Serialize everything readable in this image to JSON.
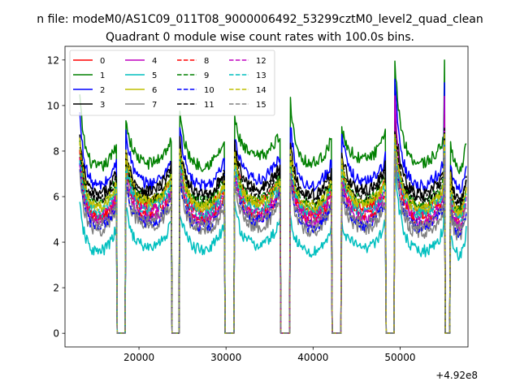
{
  "figure": {
    "suptitle": "n file: modeM0/AS1C09_011T08_9000006492_53299cztM0_level2_quad_clean",
    "offset_label": "+4.92e8"
  },
  "chart_data": {
    "type": "line",
    "title": "Quadrant 0 module wise count rates with 100.0s bins.",
    "xlabel": "",
    "ylabel": "",
    "x_offset": 492000000,
    "xlim": [
      11500,
      57800
    ],
    "ylim": [
      -0.6,
      12.6
    ],
    "xticks": [
      20000,
      30000,
      40000,
      50000
    ],
    "xtick_labels": [
      "20000",
      "30000",
      "40000",
      "50000"
    ],
    "yticks": [
      0,
      2,
      4,
      6,
      8,
      10,
      12
    ],
    "ytick_labels": [
      "0",
      "2",
      "4",
      "6",
      "8",
      "10",
      "12"
    ],
    "grid": false,
    "legend": {
      "position": "top-left",
      "columns": 4
    },
    "x_start": 13200,
    "x_end": 57600,
    "bin": 100,
    "active_segments": [
      [
        13200,
        17400
      ],
      [
        18500,
        23700
      ],
      [
        24700,
        29800
      ],
      [
        31000,
        36200
      ],
      [
        37400,
        42100
      ],
      [
        43300,
        48300
      ],
      [
        49400,
        55100
      ],
      [
        55800,
        57600
      ]
    ],
    "series": [
      {
        "name": "0",
        "color": "#ff0000",
        "dash": "solid",
        "levels": [
          5.6,
          6.2,
          6.0,
          6.3,
          5.8,
          6.1,
          5.9,
          5.8
        ],
        "spikes": [
          8.0,
          7.5,
          7.7,
          7.8,
          7.0,
          6.8,
          7.6,
          6.0
        ]
      },
      {
        "name": "1",
        "color": "#008000",
        "dash": "solid",
        "levels": [
          7.8,
          8.0,
          7.9,
          8.3,
          8.0,
          8.2,
          8.0,
          7.8
        ],
        "spikes": [
          10.4,
          9.4,
          9.6,
          9.4,
          10.1,
          8.9,
          12.0,
          8.5
        ]
      },
      {
        "name": "2",
        "color": "#0000ff",
        "dash": "solid",
        "levels": [
          7.0,
          7.1,
          7.0,
          7.3,
          7.0,
          7.2,
          7.0,
          6.9
        ],
        "spikes": [
          9.6,
          9.0,
          9.1,
          8.6,
          9.2,
          8.7,
          11.0,
          7.6
        ]
      },
      {
        "name": "3",
        "color": "#000000",
        "dash": "solid",
        "levels": [
          6.6,
          6.8,
          6.6,
          6.9,
          6.6,
          6.8,
          6.6,
          6.4
        ],
        "spikes": [
          8.6,
          8.0,
          8.4,
          8.3,
          8.4,
          8.0,
          9.6,
          7.0
        ]
      },
      {
        "name": "4",
        "color": "#bf00bf",
        "dash": "solid",
        "levels": [
          5.4,
          5.6,
          5.4,
          5.6,
          5.4,
          5.5,
          5.3,
          5.2
        ],
        "spikes": [
          7.6,
          7.0,
          7.1,
          7.0,
          7.3,
          6.7,
          10.4,
          6.0
        ]
      },
      {
        "name": "5",
        "color": "#00bfbf",
        "dash": "solid",
        "levels": [
          4.1,
          4.3,
          4.2,
          4.4,
          4.1,
          4.3,
          4.1,
          4.0
        ],
        "spikes": [
          5.6,
          5.5,
          5.4,
          5.6,
          5.0,
          4.8,
          7.4,
          4.4
        ]
      },
      {
        "name": "6",
        "color": "#bfbf00",
        "dash": "solid",
        "levels": [
          6.0,
          6.3,
          6.1,
          6.2,
          6.0,
          6.2,
          6.0,
          5.8
        ],
        "spikes": [
          8.4,
          7.8,
          8.0,
          7.8,
          7.8,
          7.4,
          8.6,
          6.8
        ]
      },
      {
        "name": "7",
        "color": "#808080",
        "dash": "solid",
        "levels": [
          5.0,
          5.2,
          5.0,
          5.2,
          5.0,
          5.1,
          4.9,
          4.8
        ],
        "spikes": [
          7.0,
          6.6,
          6.8,
          6.6,
          6.6,
          6.2,
          7.8,
          5.8
        ]
      },
      {
        "name": "8",
        "color": "#ff0000",
        "dash": "dashed",
        "levels": [
          5.5,
          5.8,
          5.6,
          5.8,
          5.6,
          5.7,
          5.5,
          5.4
        ],
        "spikes": [
          7.8,
          7.2,
          7.4,
          7.3,
          7.2,
          7.0,
          8.2,
          6.2
        ]
      },
      {
        "name": "9",
        "color": "#008000",
        "dash": "dashed",
        "levels": [
          6.2,
          6.4,
          6.3,
          6.4,
          6.2,
          6.4,
          6.2,
          6.0
        ],
        "spikes": [
          8.2,
          7.6,
          7.8,
          7.6,
          7.6,
          7.2,
          8.8,
          6.6
        ]
      },
      {
        "name": "10",
        "color": "#0000ff",
        "dash": "dashed",
        "levels": [
          5.2,
          5.4,
          5.2,
          5.5,
          5.2,
          5.3,
          5.2,
          5.0
        ],
        "spikes": [
          7.2,
          6.8,
          7.0,
          6.9,
          6.9,
          6.5,
          8.0,
          5.8
        ]
      },
      {
        "name": "11",
        "color": "#000000",
        "dash": "dashed",
        "levels": [
          6.4,
          6.6,
          6.5,
          6.7,
          6.4,
          6.6,
          6.4,
          6.2
        ],
        "spikes": [
          8.4,
          7.8,
          8.2,
          8.0,
          8.0,
          7.6,
          9.0,
          6.8
        ]
      },
      {
        "name": "12",
        "color": "#bf00bf",
        "dash": "dashed",
        "levels": [
          5.6,
          5.9,
          5.7,
          5.9,
          5.7,
          5.8,
          5.6,
          5.4
        ],
        "spikes": [
          7.6,
          7.2,
          7.4,
          7.2,
          7.2,
          6.9,
          8.4,
          6.2
        ]
      },
      {
        "name": "13",
        "color": "#00bfbf",
        "dash": "dashed",
        "levels": [
          5.8,
          6.0,
          5.8,
          6.0,
          5.8,
          5.9,
          5.8,
          5.6
        ],
        "spikes": [
          7.8,
          7.4,
          7.6,
          7.4,
          7.4,
          7.0,
          8.4,
          6.4
        ]
      },
      {
        "name": "14",
        "color": "#bfbf00",
        "dash": "dashed",
        "levels": [
          6.1,
          6.3,
          6.1,
          6.3,
          6.1,
          6.2,
          6.0,
          5.9
        ],
        "spikes": [
          8.6,
          8.2,
          8.2,
          8.0,
          8.0,
          7.6,
          8.8,
          6.8
        ]
      },
      {
        "name": "15",
        "color": "#808080",
        "dash": "dashed",
        "levels": [
          5.3,
          5.5,
          5.3,
          5.5,
          5.3,
          5.4,
          5.2,
          5.1
        ],
        "spikes": [
          7.2,
          6.8,
          7.0,
          6.8,
          6.8,
          6.4,
          7.8,
          5.8
        ]
      }
    ]
  }
}
